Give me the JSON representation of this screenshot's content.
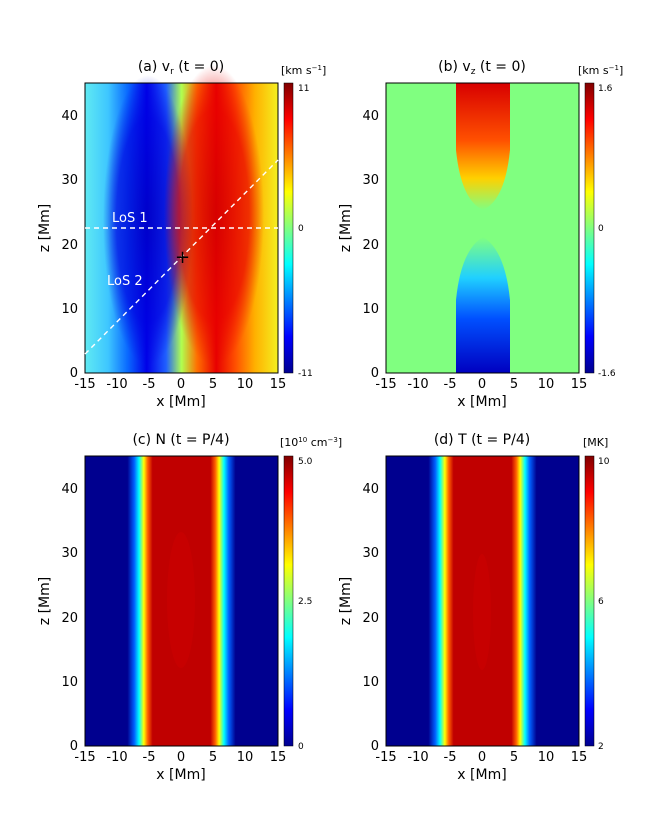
{
  "panels": [
    {
      "id": "a",
      "title": "(a) v",
      "title_sub": "r",
      "title_rest": " (t = 0)",
      "xlabel": "x [Mm]",
      "ylabel": "z [Mm]",
      "cb_unit_main": "[km s",
      "cb_unit_sup": "−1",
      "cb_unit_end": "]",
      "cb_labels": [
        "11",
        "0",
        "-11"
      ]
    },
    {
      "id": "b",
      "title": "(b) v",
      "title_sub": "z",
      "title_rest": " (t = 0)",
      "xlabel": "x [Mm]",
      "ylabel": "z [Mm]",
      "cb_unit_main": "[km s",
      "cb_unit_sup": "−1",
      "cb_unit_end": "]",
      "cb_labels": [
        "1.6",
        "0",
        "-1.6"
      ]
    },
    {
      "id": "c",
      "title": "(c) N (t = P/4)",
      "title_sub": "",
      "title_rest": "",
      "xlabel": "x [Mm]",
      "ylabel": "z [Mm]",
      "cb_unit_main": "[10",
      "cb_unit_sup": "10",
      "cb_unit_end": " cm",
      "cb_unit_sup2": "−3",
      "cb_unit_end2": "]",
      "cb_labels": [
        "5.0",
        "2.5",
        "0"
      ]
    },
    {
      "id": "d",
      "title": "(d) T (t = P/4)",
      "title_sub": "",
      "title_rest": "",
      "xlabel": "x [Mm]",
      "ylabel": "z [Mm]",
      "cb_unit_main": "[MK]",
      "cb_unit_sup": "",
      "cb_unit_end": "",
      "cb_labels": [
        "10",
        "6",
        "2"
      ]
    }
  ],
  "annotations": {
    "los1": "LoS 1",
    "los2": "LoS 2",
    "marker": "+"
  },
  "chart_data": [
    {
      "type": "heatmap",
      "title": "(a) vr (t = 0)",
      "xlabel": "x [Mm]",
      "ylabel": "z [Mm]",
      "xlim": [
        -15,
        15
      ],
      "ylim": [
        0,
        45
      ],
      "xticks": [
        -15,
        -10,
        -5,
        0,
        5,
        10,
        15
      ],
      "yticks": [
        0,
        10,
        20,
        30,
        40
      ],
      "colorbar": {
        "unit": "[km s−1]",
        "range": [
          -11,
          11
        ],
        "ticks": [
          -11,
          0,
          11
        ],
        "colormap": "jet"
      },
      "structure": "antisymmetric in x; minimum (-11) near x=-5, z≈22; maximum (+11) near x=+5, z≈22",
      "lines_of_sight": [
        {
          "label": "LoS 1",
          "from": [
            -15,
            22.5
          ],
          "to": [
            15,
            22.5
          ]
        },
        {
          "label": "LoS 2",
          "from": [
            -15,
            3
          ],
          "to": [
            15,
            33
          ]
        }
      ],
      "marker": {
        "label": "+",
        "x": 0,
        "z": 18
      }
    },
    {
      "type": "heatmap",
      "title": "(b) vz (t = 0)",
      "xlabel": "x [Mm]",
      "ylabel": "z [Mm]",
      "xlim": [
        -15,
        15
      ],
      "ylim": [
        0,
        45
      ],
      "xticks": [
        -15,
        -10,
        -5,
        0,
        5,
        10,
        15
      ],
      "yticks": [
        0,
        10,
        20,
        30,
        40
      ],
      "colorbar": {
        "unit": "[km s−1]",
        "range": [
          -1.6,
          1.6
        ],
        "ticks": [
          -1.6,
          0,
          1.6
        ],
        "colormap": "jet"
      },
      "structure": "localized |x|<5; positive (+1.6) at top z=45, negative (-1.6) at bottom z=0, zero near z≈22"
    },
    {
      "type": "heatmap",
      "title": "(c) N (t = P/4)",
      "xlabel": "x [Mm]",
      "ylabel": "z [Mm]",
      "xlim": [
        -15,
        15
      ],
      "ylim": [
        0,
        45
      ],
      "xticks": [
        -15,
        -10,
        -5,
        0,
        5,
        10,
        15
      ],
      "yticks": [
        0,
        10,
        20,
        30,
        40
      ],
      "colorbar": {
        "unit": "[1010 cm−3]",
        "range": [
          0,
          5.0
        ],
        "ticks": [
          0,
          2.5,
          5.0
        ],
        "colormap": "jet"
      },
      "structure": "vertical slab, high density (~5) for |x|<5, background ~0 outside"
    },
    {
      "type": "heatmap",
      "title": "(d) T (t = P/4)",
      "xlabel": "x [Mm]",
      "ylabel": "z [Mm]",
      "xlim": [
        -15,
        15
      ],
      "ylim": [
        0,
        45
      ],
      "xticks": [
        -15,
        -10,
        -5,
        0,
        5,
        10,
        15
      ],
      "yticks": [
        0,
        10,
        20,
        30,
        40
      ],
      "colorbar": {
        "unit": "[MK]",
        "range": [
          2,
          10
        ],
        "ticks": [
          2,
          6,
          10
        ],
        "colormap": "jet"
      },
      "structure": "vertical slab, high temperature (~10) for |x|<5, background ~2 outside"
    }
  ]
}
